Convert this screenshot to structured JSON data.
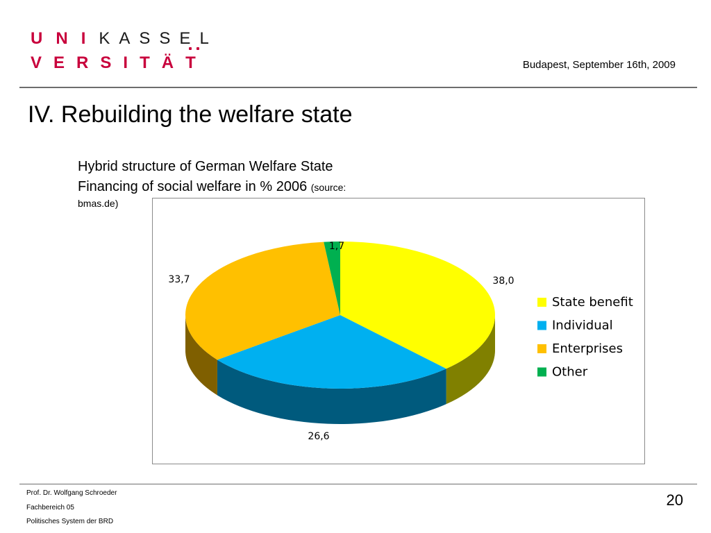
{
  "header": {
    "logo": {
      "row1_red": [
        "U",
        "N",
        "I"
      ],
      "row1_black": [
        "K",
        "A",
        "S",
        "S",
        "E",
        "L"
      ],
      "row2": [
        "V",
        "E",
        "R",
        "S",
        "I",
        "T",
        "Ä",
        "T"
      ]
    },
    "date": "Budapest, September 16th, 2009",
    "colors": {
      "brand_red": "#c8003c"
    }
  },
  "slide": {
    "title": "IV. Rebuilding the welfare state",
    "subtitle_line1": "Hybrid structure of German Welfare State",
    "subtitle_line2": "Financing of social welfare in % 2006",
    "source_part1": "(source:",
    "source_part2": "bmas.de)"
  },
  "chart_data": {
    "type": "pie",
    "style": "3d",
    "categories": [
      "State benefit",
      "Individual",
      "Enterprises",
      "Other"
    ],
    "values": [
      38.0,
      26.6,
      33.7,
      1.7
    ],
    "data_labels": [
      "38,0",
      "26,6",
      "33,7",
      "1,7"
    ],
    "colors": {
      "top": [
        "#ffff00",
        "#00b0f0",
        "#ffc000",
        "#00b050"
      ],
      "side": [
        "#808000",
        "#005a7d",
        "#7f5f00",
        "#00602a"
      ]
    },
    "legend": {
      "position": "right",
      "entries": [
        "State benefit",
        "Individual",
        "Enterprises",
        "Other"
      ]
    },
    "title": ""
  },
  "footer": {
    "line1": "Prof. Dr. Wolfgang Schroeder",
    "line2": "Fachbereich 05",
    "line3": "Politisches System der BRD",
    "page_number": "20"
  }
}
